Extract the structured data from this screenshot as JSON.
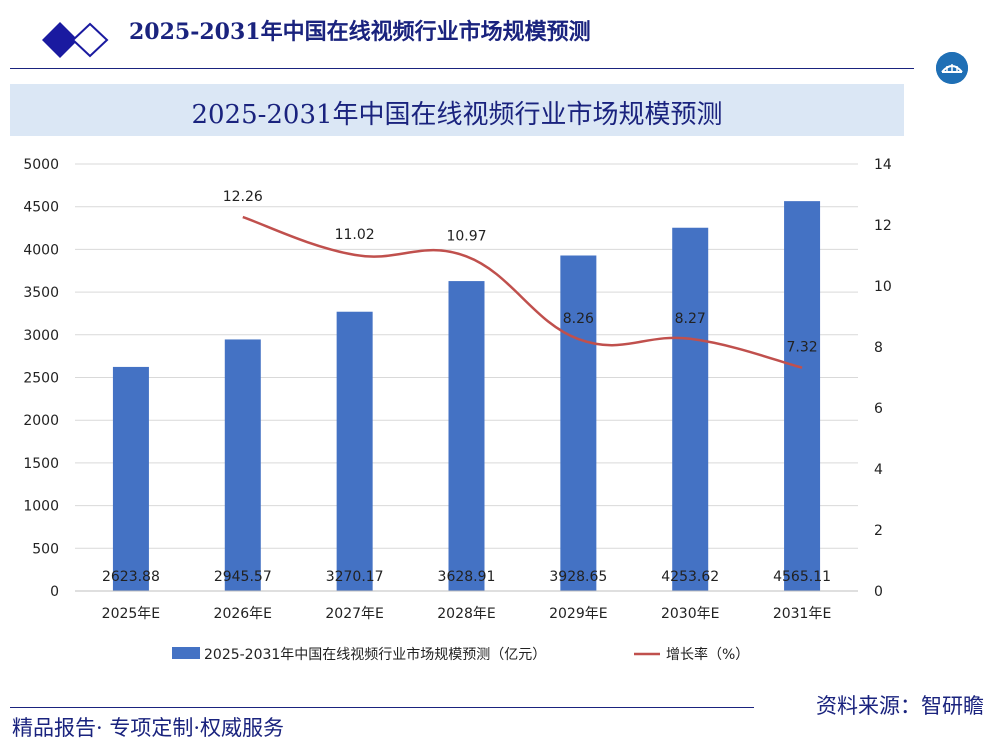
{
  "header": {
    "title": "2025-2031年中国在线视频行业市场规模预测"
  },
  "banner": {
    "title": "2025-2031年中国在线视频行业市场规模预测"
  },
  "footer": {
    "left": "精品报告· 专项定制·权威服务",
    "right": "资料来源：智研瞻"
  },
  "colors": {
    "bar": "#4472c4",
    "line": "#c0504d",
    "brand": "#1a237e",
    "banner_bg": "#dbe7f5"
  },
  "icons": {
    "logo": "diamond-logo-icon",
    "badge": "bridge-badge-icon"
  },
  "chart_data": {
    "type": "bar",
    "categories": [
      "2025年E",
      "2026年E",
      "2027年E",
      "2028年E",
      "2029年E",
      "2030年E",
      "2031年E"
    ],
    "series": [
      {
        "name": "2025-2031年中国在线视频行业市场规模预测（亿元）",
        "type": "bar",
        "axis": "left",
        "values": [
          2623.88,
          2945.57,
          3270.17,
          3628.91,
          3928.65,
          4253.62,
          4565.11
        ],
        "labels": [
          "2623.88",
          "2945.57",
          "3270.17",
          "3628.91",
          "3928.65",
          "4253.62",
          "4565.11"
        ]
      },
      {
        "name": "增长率（%）",
        "type": "line",
        "axis": "right",
        "values": [
          null,
          12.26,
          11.02,
          10.97,
          8.26,
          8.27,
          7.32
        ],
        "labels": [
          "",
          "12.26",
          "11.02",
          "10.97",
          "8.26",
          "8.27",
          "7.32"
        ]
      }
    ],
    "y_left": {
      "ticks": [
        "0",
        "500",
        "1000",
        "1500",
        "2000",
        "2500",
        "3000",
        "3500",
        "4000",
        "4500",
        "5000"
      ],
      "min": 0,
      "max": 5000
    },
    "y_right": {
      "ticks": [
        "0",
        "2",
        "4",
        "6",
        "8",
        "10",
        "12",
        "14"
      ],
      "min": 0,
      "max": 14
    },
    "legend_position": "bottom",
    "grid": true
  }
}
